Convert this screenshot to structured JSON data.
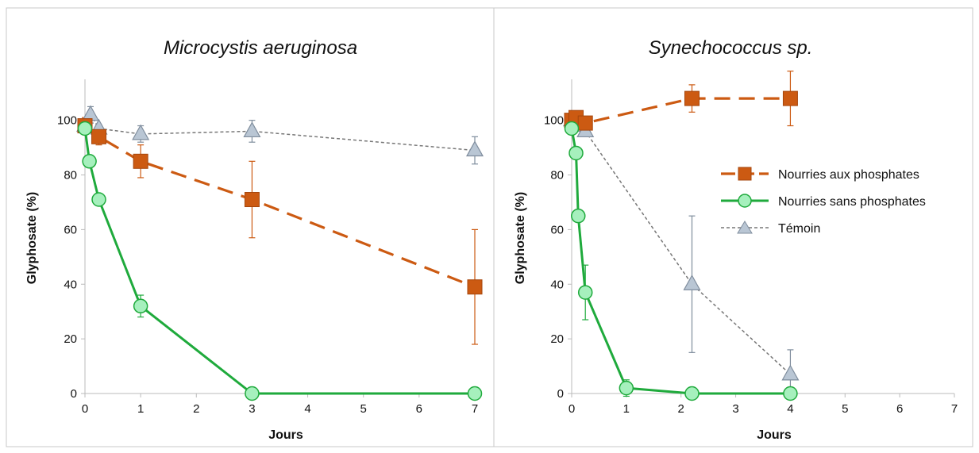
{
  "legend": {
    "placement": "inside-right of second panel",
    "entries": [
      {
        "key": "phos",
        "label": "Nourries aux phosphates"
      },
      {
        "key": "nophos",
        "label": "Nourries sans phosphates"
      },
      {
        "key": "temoin",
        "label": "Témoin"
      }
    ]
  },
  "colors": {
    "phos": "#cc5a12",
    "nophos": "#1faa3c",
    "nophos_fill": "#a6f0bd",
    "temoin_line": "#777777",
    "temoin_fill": "#b9c6d4",
    "temoin_stroke": "#7f8d9d",
    "axis": "#bbbbbb",
    "panel_border": "#c8c8c8"
  },
  "chart_data": [
    {
      "type": "line",
      "title": "Microcystis aeruginosa",
      "xlabel": "Jours",
      "ylabel": "Glyphosate (%)",
      "xlim": [
        0,
        7
      ],
      "ylim": [
        0,
        115
      ],
      "xticks": [
        "0",
        "1",
        "2",
        "3",
        "4",
        "5",
        "6",
        "7"
      ],
      "yticks": [
        "0",
        "20",
        "40",
        "60",
        "80",
        "100"
      ],
      "grid": false,
      "series": [
        {
          "key": "phos",
          "name": "Nourries aux phosphates",
          "x": [
            0,
            0.25,
            1,
            3,
            7
          ],
          "y": [
            98,
            94,
            85,
            71,
            39
          ],
          "err": [
            3,
            3,
            6,
            14,
            21
          ]
        },
        {
          "key": "nophos",
          "name": "Nourries sans phosphates",
          "x": [
            0,
            0.08,
            0.25,
            1,
            3,
            7
          ],
          "y": [
            97,
            85,
            71,
            32,
            0,
            0
          ],
          "err": [
            2,
            0,
            0,
            4,
            0,
            0
          ]
        },
        {
          "key": "temoin",
          "name": "Témoin",
          "x": [
            0,
            0.1,
            0.25,
            1,
            3,
            7
          ],
          "y": [
            98,
            102,
            97,
            95,
            96,
            89
          ],
          "err": [
            2,
            3,
            0,
            3,
            4,
            5
          ]
        }
      ]
    },
    {
      "type": "line",
      "title": "Synechococcus sp.",
      "xlabel": "Jours",
      "ylabel": "Glyphosate (%)",
      "xlim": [
        0,
        7
      ],
      "ylim": [
        0,
        115
      ],
      "xticks": [
        "0",
        "1",
        "2",
        "3",
        "4",
        "5",
        "6",
        "7"
      ],
      "yticks": [
        "0",
        "20",
        "40",
        "60",
        "80",
        "100"
      ],
      "grid": false,
      "series": [
        {
          "key": "phos",
          "name": "Nourries aux phosphates",
          "x": [
            0,
            0.08,
            0.25,
            2.2,
            4
          ],
          "y": [
            100,
            101,
            99,
            108,
            108
          ],
          "err": [
            1,
            1,
            1,
            5,
            10
          ]
        },
        {
          "key": "nophos",
          "name": "Nourries sans phosphates",
          "x": [
            0,
            0.08,
            0.12,
            0.25,
            1,
            2.2,
            4
          ],
          "y": [
            97,
            88,
            65,
            37,
            2,
            0,
            0
          ],
          "err": [
            0,
            0,
            0,
            10,
            3,
            0,
            0
          ]
        },
        {
          "key": "temoin",
          "name": "Témoin",
          "x": [
            0,
            0.08,
            0.25,
            2.2,
            4
          ],
          "y": [
            100,
            98,
            96,
            40,
            7
          ],
          "err": [
            0,
            2,
            1,
            25,
            9
          ]
        }
      ]
    }
  ]
}
